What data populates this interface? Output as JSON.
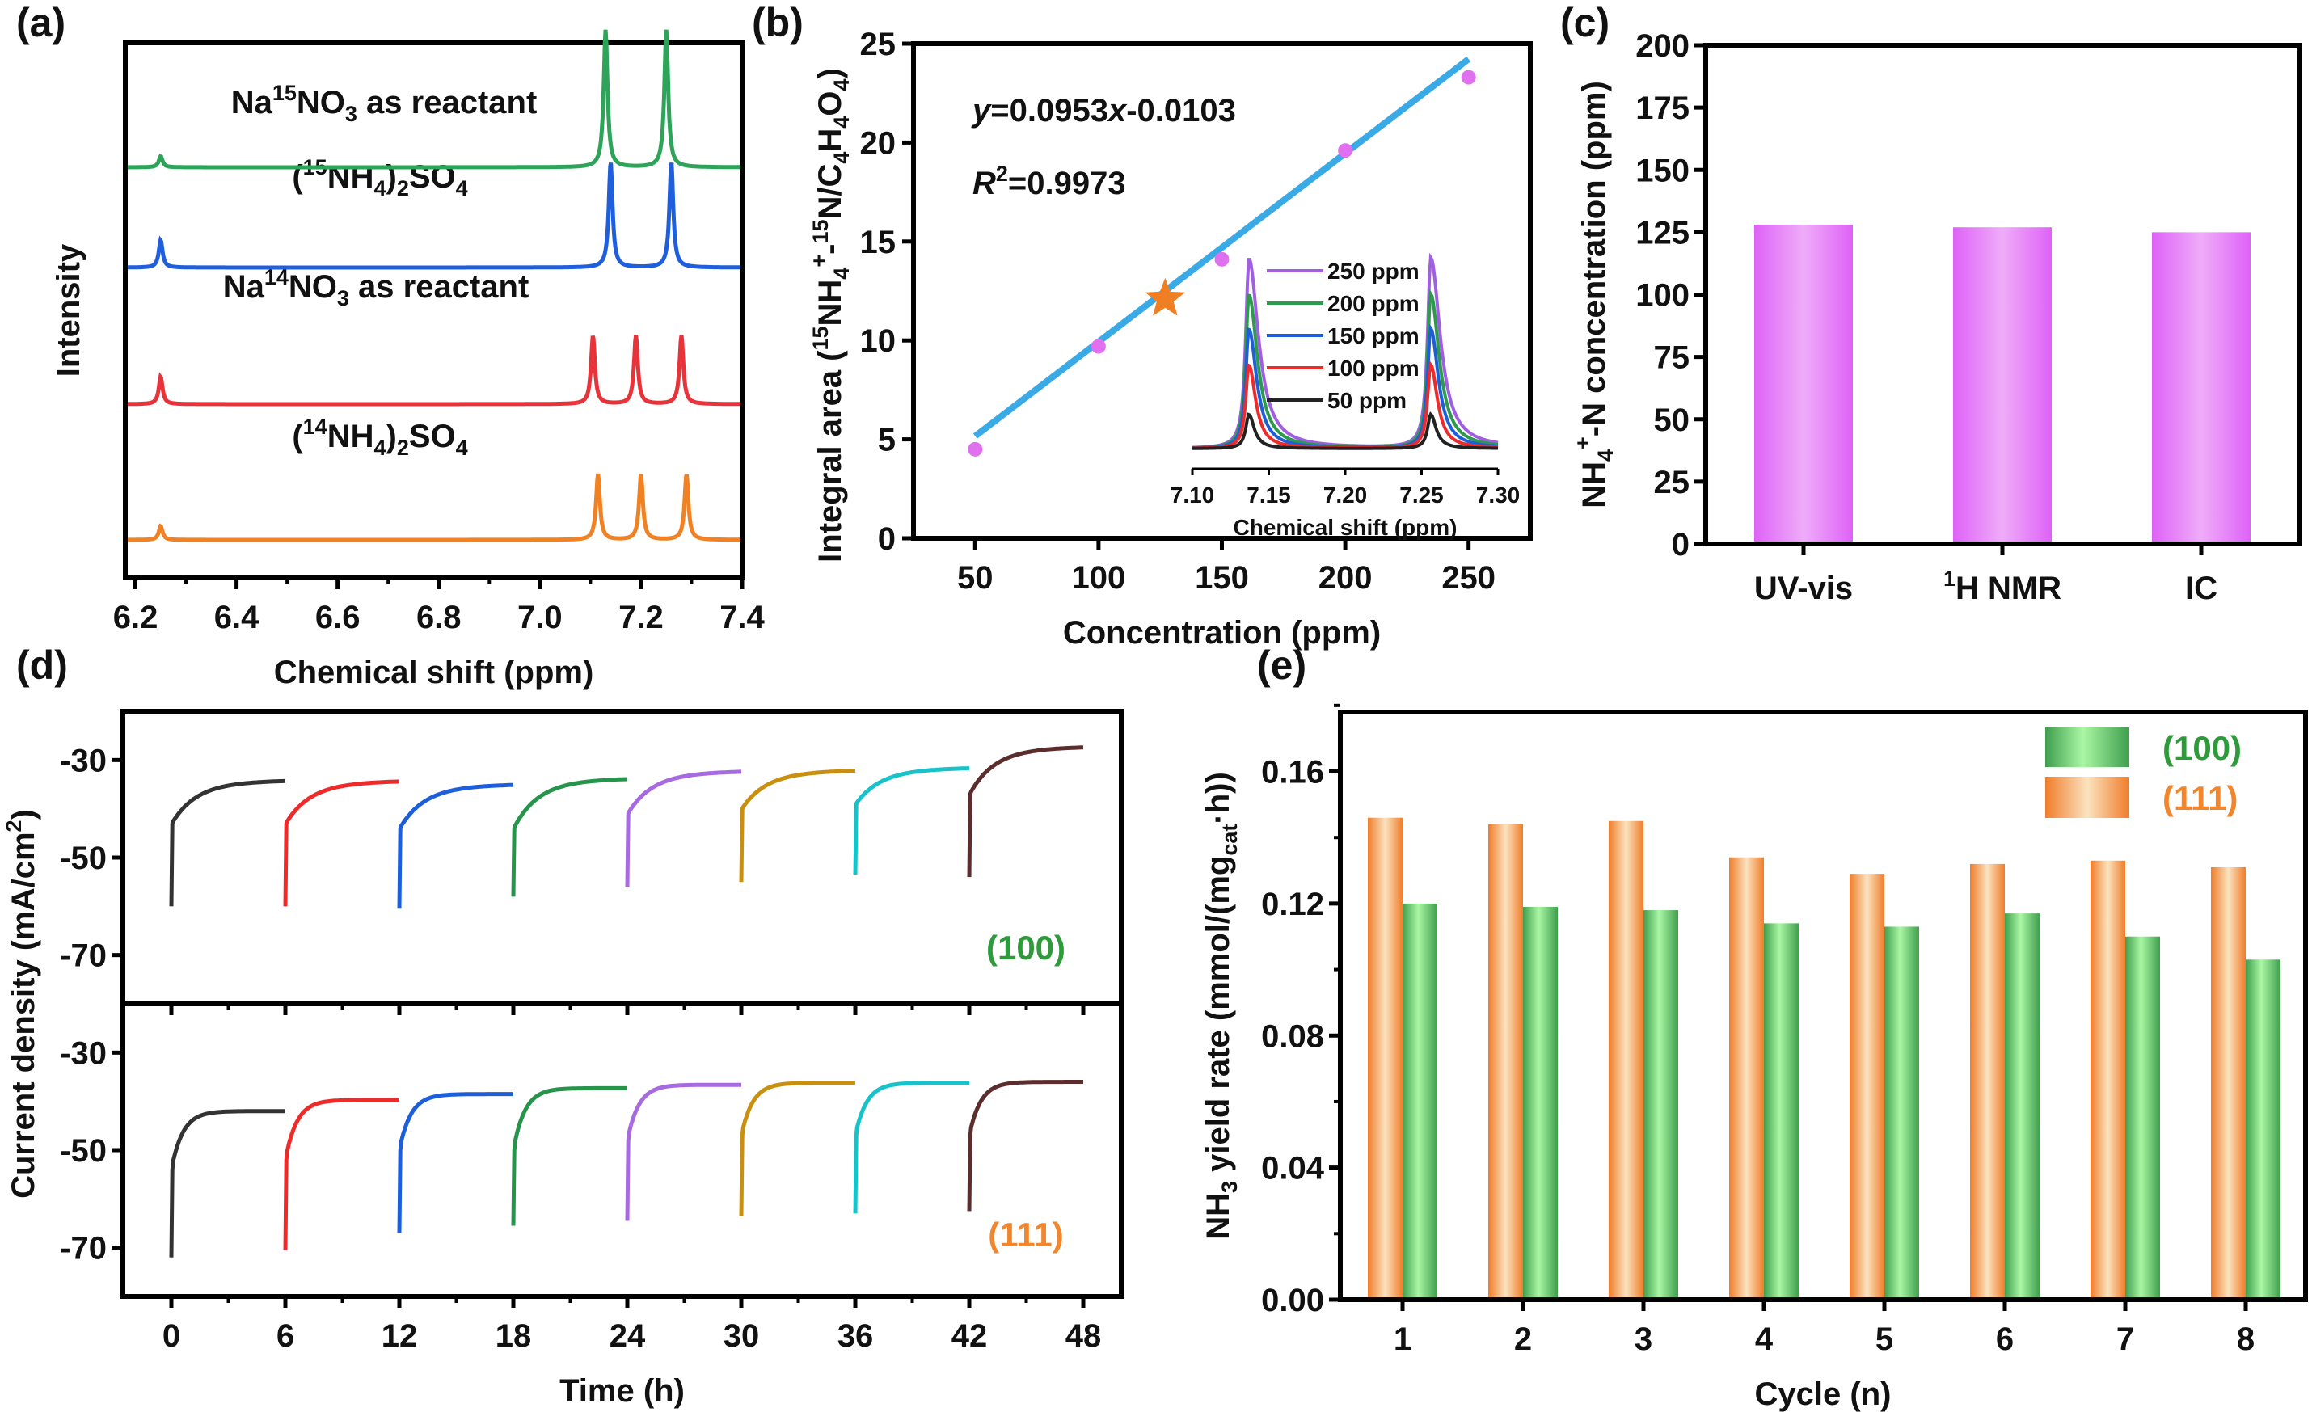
{
  "colors": {
    "nmr_green": "#2ea35a",
    "nmr_blue": "#1f5fdc",
    "nmr_red": "#e8333a",
    "nmr_orange": "#f08224",
    "fit_line": "#3aaae6",
    "points": "#e070f0",
    "star": "#ef7f22",
    "bar_c": "#e066f5",
    "bar_100": "#57c561",
    "bar_111": "#f59045",
    "label_100": "#2f9a3c",
    "label_111": "#f2862d",
    "seg": [
      "#333333",
      "#ee2b2b",
      "#1d5fdb",
      "#26944a",
      "#a86ae0",
      "#c8900e",
      "#17c2c8",
      "#5c2d2d"
    ]
  },
  "chart_data": [
    {
      "id": "a",
      "panel_label": "(a)",
      "type": "line",
      "title": "",
      "xlabel": "Chemical shift (ppm)",
      "ylabel": "Intensity",
      "xlim": [
        6.18,
        7.4
      ],
      "xticks": [
        "6.2",
        "6.4",
        "6.6",
        "6.8",
        "7.0",
        "7.2",
        "7.4"
      ],
      "xtick_values": [
        6.2,
        6.4,
        6.6,
        6.8,
        7.0,
        7.2,
        7.4
      ],
      "series": [
        {
          "name": "Na15NO3 as reactant",
          "label": {
            "pre": "Na",
            "sup": "15",
            "mid": "NO",
            "sub": "3",
            "post": " as reactant"
          },
          "color_key": "nmr_green",
          "offset": 3,
          "peaks": [
            {
              "x": 6.25,
              "h": 0.08
            },
            {
              "x": 7.13,
              "h": 1.0
            },
            {
              "x": 7.25,
              "h": 1.0
            }
          ]
        },
        {
          "name": "(15NH4)2SO4",
          "label": {
            "pre": "(",
            "sup": "15",
            "mid": "NH",
            "sub": "4",
            "post": ")",
            "sub2": "2",
            "post2": "SO",
            "sub3": "4"
          },
          "color_key": "nmr_blue",
          "offset": 2,
          "peaks": [
            {
              "x": 6.25,
              "h": 0.2
            },
            {
              "x": 7.14,
              "h": 0.77
            },
            {
              "x": 7.26,
              "h": 0.77
            }
          ]
        },
        {
          "name": "Na14NO3 as reactant",
          "label": {
            "pre": "Na",
            "sup": "14",
            "mid": "NO",
            "sub": "3",
            "post": " as reactant"
          },
          "color_key": "nmr_red",
          "offset": 1,
          "peaks": [
            {
              "x": 6.25,
              "h": 0.2
            },
            {
              "x": 7.105,
              "h": 0.5
            },
            {
              "x": 7.19,
              "h": 0.5
            },
            {
              "x": 7.28,
              "h": 0.5
            }
          ]
        },
        {
          "name": "(14NH4)2SO4",
          "label": {
            "pre": "(",
            "sup": "14",
            "mid": "NH",
            "sub": "4",
            "post": ")",
            "sub2": "2",
            "post2": "SO",
            "sub3": "4"
          },
          "color_key": "nmr_orange",
          "offset": 0,
          "peaks": [
            {
              "x": 6.25,
              "h": 0.1
            },
            {
              "x": 7.115,
              "h": 0.48
            },
            {
              "x": 7.2,
              "h": 0.48
            },
            {
              "x": 7.29,
              "h": 0.48
            }
          ]
        }
      ]
    },
    {
      "id": "b",
      "panel_label": "(b)",
      "type": "scatter",
      "xlabel": "Concentration (ppm)",
      "ylabel": "Integral area (15NH4+-15N/C4H4O4)",
      "xlim": [
        25,
        275
      ],
      "ylim": [
        0,
        25
      ],
      "xticks": [
        50,
        100,
        150,
        200,
        250
      ],
      "yticks": [
        0,
        5,
        10,
        15,
        20,
        25
      ],
      "points": [
        {
          "x": 50,
          "y": 4.5
        },
        {
          "x": 100,
          "y": 9.7
        },
        {
          "x": 150,
          "y": 14.1
        },
        {
          "x": 200,
          "y": 19.6
        },
        {
          "x": 250,
          "y": 23.3
        }
      ],
      "fit": {
        "slope": 0.0953,
        "intercept": -0.0103,
        "x_range": [
          50,
          250
        ],
        "equation": "=0.0953",
        "equation_var_y": "y",
        "equation_var_x": "x",
        "equation_tail": "-0.0103",
        "r2_label": "R",
        "r2_sup": "2",
        "r2_value": "=0.9973"
      },
      "star": {
        "x": 127,
        "y": 12.1
      },
      "inset": {
        "type": "line",
        "xlabel": "Chemical shift (ppm)",
        "xlim": [
          7.1,
          7.3
        ],
        "xticks": [
          "7.10",
          "7.15",
          "7.20",
          "7.25",
          "7.30"
        ],
        "xtick_values": [
          7.1,
          7.15,
          7.2,
          7.25,
          7.3
        ],
        "peaks_x": [
          7.137,
          7.256
        ],
        "series": [
          {
            "name": "250 ppm",
            "color": "#a05fe0",
            "h": 1.0
          },
          {
            "name": "200 ppm",
            "color": "#2e9a4e",
            "h": 0.81
          },
          {
            "name": "150 ppm",
            "color": "#1e5fd8",
            "h": 0.63
          },
          {
            "name": "100 ppm",
            "color": "#ee2b2b",
            "h": 0.44
          },
          {
            "name": "50 ppm",
            "color": "#222222",
            "h": 0.18
          }
        ]
      }
    },
    {
      "id": "c",
      "panel_label": "(c)",
      "type": "bar",
      "categories": [
        "UV-vis",
        "H NMR",
        "IC"
      ],
      "category_sups": [
        "",
        "1",
        ""
      ],
      "values": [
        128,
        127,
        125
      ],
      "ylabel": "NH4+-N concentration (ppm)",
      "ylim": [
        0,
        200
      ],
      "yticks": [
        0,
        25,
        50,
        75,
        100,
        125,
        150,
        175,
        200
      ]
    },
    {
      "id": "d",
      "panel_label": "(d)",
      "type": "line",
      "xlabel": "Time (h)",
      "ylabel": "Current density (mA/cm2)",
      "xlim": [
        -3,
        50
      ],
      "ylim": [
        -80,
        -20
      ],
      "xticks": [
        0,
        6,
        12,
        18,
        24,
        30,
        36,
        42,
        48
      ],
      "yticks": [
        -30,
        -50,
        -70
      ],
      "panels": [
        {
          "name": "(100)",
          "color_key": "label_100",
          "segments": [
            {
              "t0": 0,
              "min": -60,
              "knee": -43,
              "plateau": -34.4
            },
            {
              "t0": 6,
              "min": -60,
              "knee": -43,
              "plateau": -34.5
            },
            {
              "t0": 12,
              "min": -60.5,
              "knee": -44,
              "plateau": -35.2
            },
            {
              "t0": 18,
              "min": -58,
              "knee": -44,
              "plateau": -34.0
            },
            {
              "t0": 24,
              "min": -56,
              "knee": -41,
              "plateau": -32.5
            },
            {
              "t0": 30,
              "min": -55,
              "knee": -40,
              "plateau": -32.3
            },
            {
              "t0": 36,
              "min": -53.5,
              "knee": -39,
              "plateau": -31.8
            },
            {
              "t0": 42,
              "min": -54,
              "knee": -37,
              "plateau": -27.5
            }
          ]
        },
        {
          "name": "(111)",
          "color_key": "label_111",
          "segments": [
            {
              "t0": 0,
              "min": -72,
              "knee": -54,
              "plateau": -42.0
            },
            {
              "t0": 6,
              "min": -70.5,
              "knee": -52,
              "plateau": -39.7
            },
            {
              "t0": 12,
              "min": -67,
              "knee": -50,
              "plateau": -38.5
            },
            {
              "t0": 18,
              "min": -65.5,
              "knee": -50,
              "plateau": -37.3
            },
            {
              "t0": 24,
              "min": -64.5,
              "knee": -48,
              "plateau": -36.6
            },
            {
              "t0": 30,
              "min": -63.5,
              "knee": -47,
              "plateau": -36.2
            },
            {
              "t0": 36,
              "min": -63,
              "knee": -47,
              "plateau": -36.2
            },
            {
              "t0": 42,
              "min": -62.5,
              "knee": -47,
              "plateau": -36.0
            }
          ]
        }
      ]
    },
    {
      "id": "e",
      "panel_label": "(e)",
      "type": "bar",
      "categories": [
        "1",
        "2",
        "3",
        "4",
        "5",
        "6",
        "7",
        "8"
      ],
      "series": [
        {
          "name": "(111)",
          "color_key": "bar_111",
          "values": [
            0.146,
            0.144,
            0.145,
            0.134,
            0.129,
            0.132,
            0.133,
            0.131
          ]
        },
        {
          "name": "(100)",
          "color_key": "bar_100",
          "values": [
            0.12,
            0.119,
            0.118,
            0.114,
            0.113,
            0.117,
            0.11,
            0.103
          ]
        }
      ],
      "legend": [
        "(100)",
        "(111)"
      ],
      "legend_position": "top-right",
      "xlabel": "Cycle (n)",
      "ylabel": "NH3 yield rate (mmol/(mgcat·h))",
      "ylim": [
        0,
        0.178
      ],
      "yticks": [
        "0.00",
        "0.04",
        "0.08",
        "0.12",
        "0.16"
      ],
      "ytick_values": [
        0,
        0.04,
        0.08,
        0.12,
        0.16
      ]
    }
  ]
}
